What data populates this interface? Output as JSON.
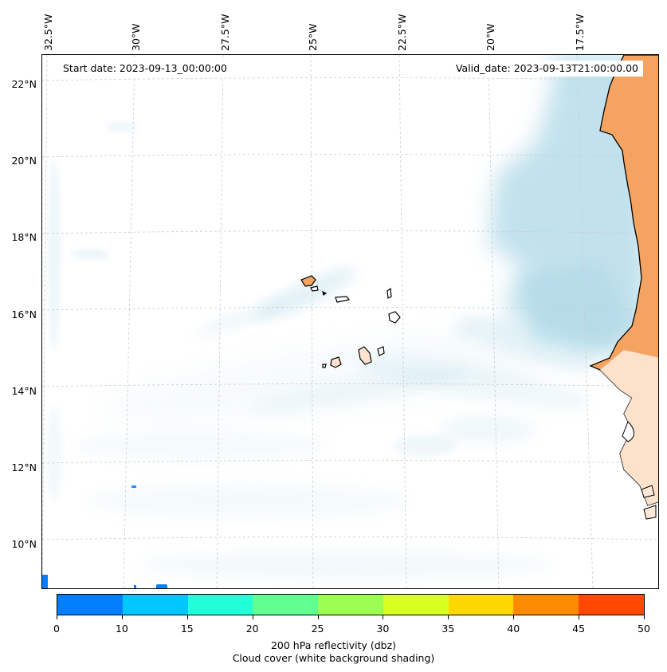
{
  "info": {
    "start_date": "Start date: 2023-09-13_00:00:00",
    "valid_date": "Valid_date: 2023-09-13T21:00:00.00"
  },
  "lon_labels": [
    "32.5°W",
    "30°W",
    "27.5°W",
    "25°W",
    "22.5°W",
    "20°W",
    "17.5°W"
  ],
  "lat_labels": [
    "22°N",
    "20°N",
    "18°N",
    "16°N",
    "14°N",
    "12°N",
    "10°N"
  ],
  "colorbar": {
    "ticks": [
      "0",
      "10",
      "15",
      "20",
      "25",
      "30",
      "35",
      "40",
      "45",
      "50"
    ],
    "colors": [
      "#0080ff",
      "#00c8ff",
      "#20ffd8",
      "#60ff90",
      "#9cff50",
      "#d8ff20",
      "#ffd800",
      "#ff8c00",
      "#ff4800"
    ],
    "label_line1": "200 hPa reflectivity (dbz)",
    "label_line2": "Cloud cover (white background shading)"
  },
  "colors": {
    "land": "#f4a460",
    "cloud": "#add8e6",
    "coastline": "#000000",
    "gridline": "#cccccc"
  }
}
